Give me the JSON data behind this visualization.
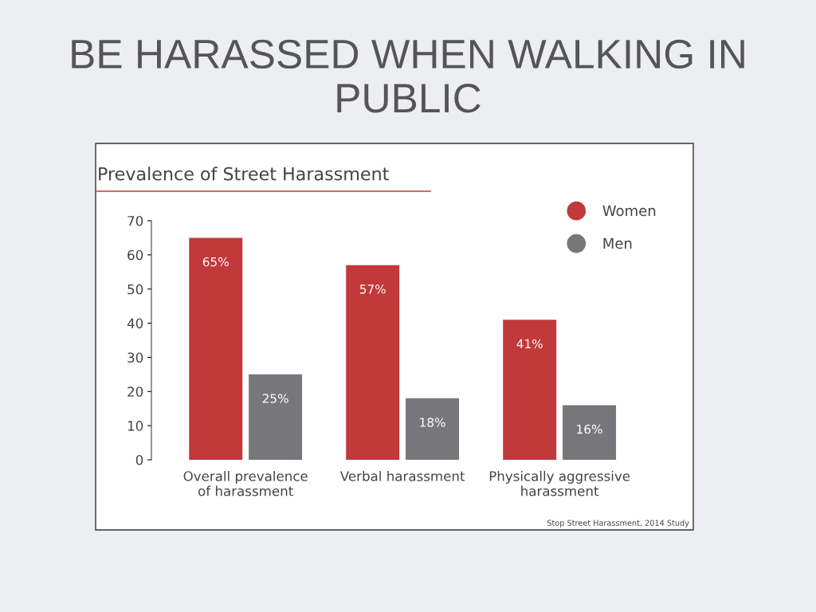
{
  "chart_data": {
    "type": "bar",
    "title": "BE HARASSED WHEN WALKING IN PUBLIC",
    "subtitle": "Prevalence of Street Harassment",
    "categories": [
      "Overall prevalence\nof harassment",
      "Verbal harassment",
      "Physically aggressive\nharassment"
    ],
    "series": [
      {
        "name": "Women",
        "color": "#c1393b",
        "values": [
          65,
          57,
          41
        ],
        "value_labels": [
          "65%",
          "57%",
          "41%"
        ]
      },
      {
        "name": "Men",
        "color": "#77777b",
        "values": [
          25,
          18,
          16
        ],
        "value_labels": [
          "25%",
          "18%",
          "16%"
        ]
      }
    ],
    "ylim": [
      0,
      70
    ],
    "yticks": [
      0,
      10,
      20,
      30,
      40,
      50,
      60,
      70
    ],
    "grid": false,
    "legend": "top right",
    "annotations": [
      "Stop Street Harassment, 2014 Study"
    ]
  }
}
